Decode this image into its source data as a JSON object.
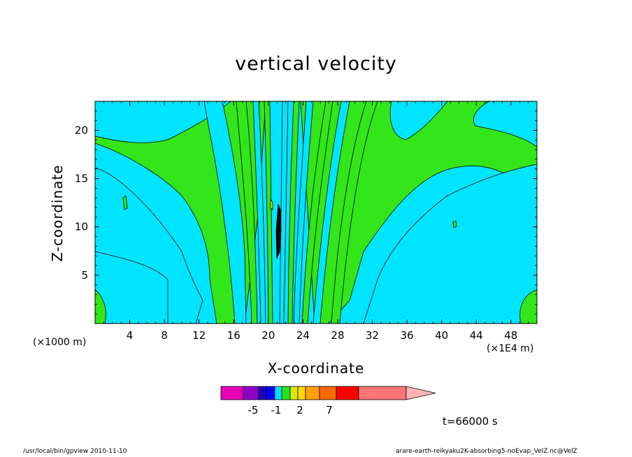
{
  "chart_data": {
    "type": "heatmap",
    "title": "vertical velocity",
    "xlabel": "X-coordinate",
    "ylabel": "Z-coordinate",
    "x_unit": "(×1E4 m)",
    "y_unit": "(×1000 m)",
    "x_ticks": [
      4,
      8,
      12,
      16,
      20,
      24,
      28,
      32,
      36,
      40,
      44,
      48
    ],
    "y_ticks": [
      5,
      10,
      15,
      20
    ],
    "xlim": [
      0,
      51
    ],
    "ylim": [
      0,
      23
    ],
    "time_label": "t=66000 s",
    "colorbar": {
      "colors": [
        "#e800b8",
        "#8c00c8",
        "#1a00c0",
        "#0000ff",
        "#00e0ff",
        "#22e41a",
        "#dde800",
        "#ffd800",
        "#ffa000",
        "#ff6a00",
        "#ff0000",
        "#ff7575",
        "#ffb4b4"
      ],
      "tick_labels": [
        "-5",
        "-1",
        "2",
        "7"
      ]
    },
    "fill_colors": {
      "cyan": "#00e5ff",
      "green": "#33e61a",
      "yellow": "#e6e600",
      "blue": "#0000ff"
    }
  },
  "footer": {
    "left": "/usr/local/bin/gpview  2010-11-10",
    "right": "arare-earth-reikyaku2K-absorbing5-noEvap_VelZ.nc@VelZ"
  }
}
